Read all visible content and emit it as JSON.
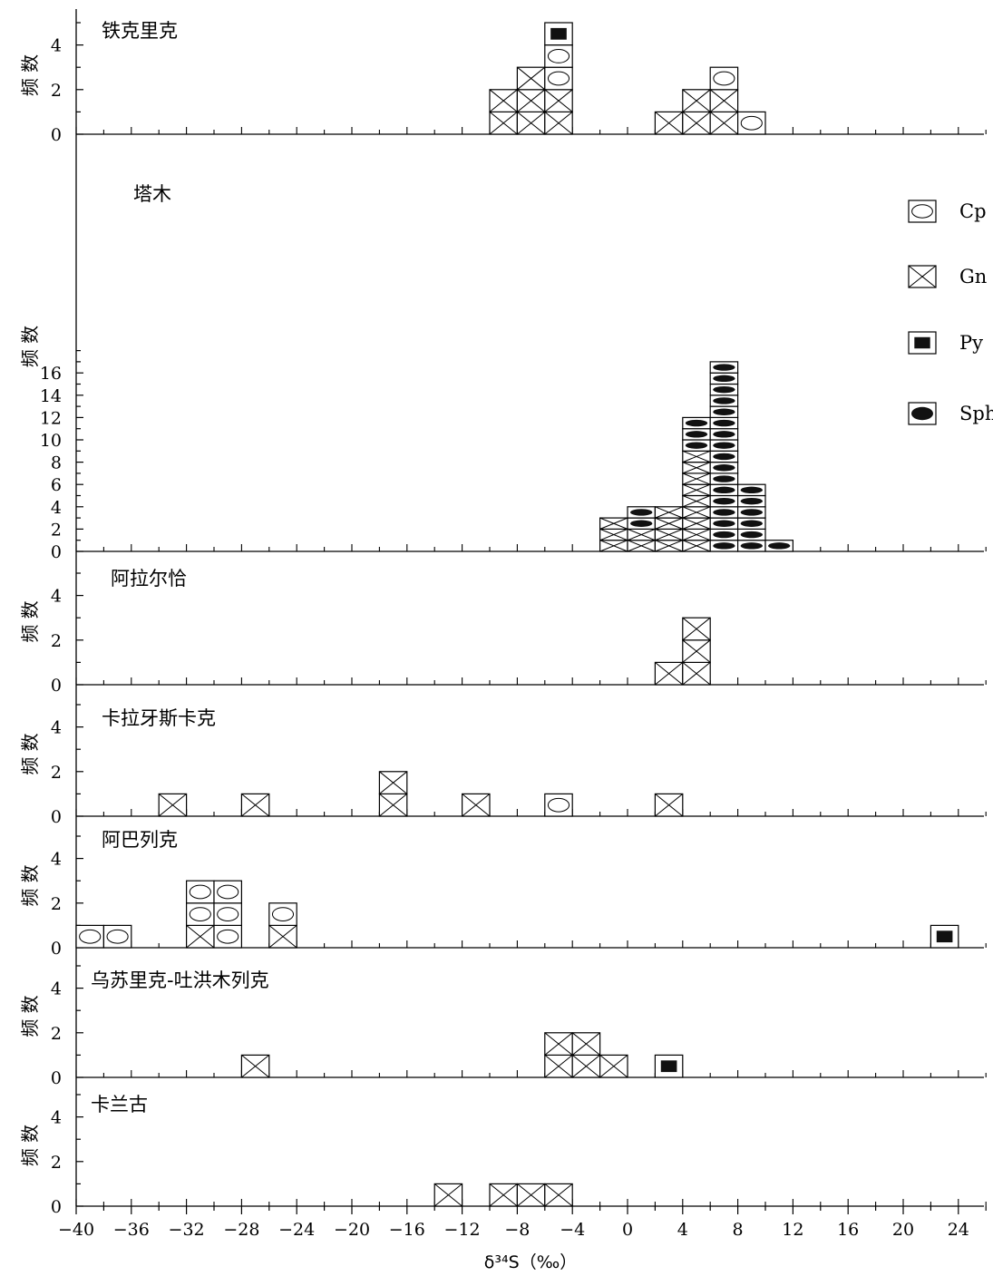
{
  "figure": {
    "xlabel": "δ³⁴S（‰）",
    "ylabel": "频 数",
    "xlim": [
      -40,
      26
    ],
    "x_ticks": [
      -40,
      -36,
      -32,
      -28,
      -24,
      -20,
      -16,
      -12,
      -8,
      -4,
      0,
      4,
      8,
      12,
      16,
      20,
      24
    ],
    "x_tick_labels": [
      "−40",
      "−36",
      "−32",
      "−28",
      "−24",
      "−20",
      "−16",
      "−12",
      "−8",
      "−4",
      "0",
      "4",
      "8",
      "12",
      "16",
      "20",
      "24"
    ],
    "bin_width": 2
  },
  "legend": {
    "placement": "right of 塔木 panel",
    "items": [
      {
        "key": "Cp",
        "label": "Cp",
        "symbol": "open-ellipse"
      },
      {
        "key": "Gn",
        "label": "Gn",
        "symbol": "cross-box"
      },
      {
        "key": "Py",
        "label": "Py",
        "symbol": "filled-square"
      },
      {
        "key": "Sph",
        "label": "Sph",
        "symbol": "filled-ellipse"
      }
    ]
  },
  "chart_data": [
    {
      "type": "bar",
      "title": "铁克里克",
      "ylim": [
        0,
        5
      ],
      "y_ticks": [
        0,
        2,
        4
      ],
      "stack_order": [
        "Gn",
        "Cp",
        "Py"
      ],
      "bins": [
        {
          "x0": -10,
          "x1": -8,
          "counts": {
            "Gn": 2
          }
        },
        {
          "x0": -8,
          "x1": -6,
          "counts": {
            "Gn": 3
          }
        },
        {
          "x0": -6,
          "x1": -4,
          "counts": {
            "Gn": 2,
            "Cp": 2,
            "Py": 1
          }
        },
        {
          "x0": 2,
          "x1": 4,
          "counts": {
            "Gn": 1
          }
        },
        {
          "x0": 4,
          "x1": 6,
          "counts": {
            "Gn": 2
          }
        },
        {
          "x0": 6,
          "x1": 8,
          "counts": {
            "Gn": 2,
            "Cp": 1
          }
        },
        {
          "x0": 8,
          "x1": 10,
          "counts": {
            "Cp": 1
          }
        }
      ]
    },
    {
      "type": "bar",
      "title": "塔木",
      "ylim": [
        0,
        18
      ],
      "y_ticks": [
        0,
        2,
        4,
        6,
        8,
        10,
        12,
        14,
        16
      ],
      "stack_order": [
        "Gn",
        "Sph"
      ],
      "bins": [
        {
          "x0": -2,
          "x1": 0,
          "counts": {
            "Gn": 3
          }
        },
        {
          "x0": 0,
          "x1": 2,
          "counts": {
            "Gn": 2,
            "Sph": 2
          }
        },
        {
          "x0": 2,
          "x1": 4,
          "counts": {
            "Gn": 4
          }
        },
        {
          "x0": 4,
          "x1": 6,
          "counts": {
            "Gn": 9,
            "Sph": 3
          }
        },
        {
          "x0": 6,
          "x1": 8,
          "counts": {
            "Sph": 17
          }
        },
        {
          "x0": 8,
          "x1": 10,
          "counts": {
            "Sph": 6
          }
        },
        {
          "x0": 10,
          "x1": 12,
          "counts": {
            "Sph": 1
          }
        }
      ]
    },
    {
      "type": "bar",
      "title": "阿拉尔恰",
      "ylim": [
        0,
        6
      ],
      "y_ticks": [
        0,
        2,
        4
      ],
      "stack_order": [
        "Gn"
      ],
      "bins": [
        {
          "x0": 2,
          "x1": 4,
          "counts": {
            "Gn": 1
          }
        },
        {
          "x0": 4,
          "x1": 6,
          "counts": {
            "Gn": 3
          }
        }
      ]
    },
    {
      "type": "bar",
      "title": "卡拉牙斯卡克",
      "ylim": [
        0,
        6
      ],
      "y_ticks": [
        0,
        2,
        4
      ],
      "stack_order": [
        "Gn",
        "Cp"
      ],
      "bins": [
        {
          "x0": -34,
          "x1": -32,
          "counts": {
            "Gn": 1
          }
        },
        {
          "x0": -28,
          "x1": -26,
          "counts": {
            "Gn": 1
          }
        },
        {
          "x0": -18,
          "x1": -16,
          "counts": {
            "Gn": 2
          }
        },
        {
          "x0": -12,
          "x1": -10,
          "counts": {
            "Gn": 1
          }
        },
        {
          "x0": -6,
          "x1": -4,
          "counts": {
            "Cp": 1
          }
        },
        {
          "x0": 2,
          "x1": 4,
          "counts": {
            "Gn": 1
          }
        }
      ]
    },
    {
      "type": "bar",
      "title": "阿巴列克",
      "ylim": [
        0,
        6
      ],
      "y_ticks": [
        0,
        2,
        4
      ],
      "stack_order": [
        "Gn",
        "Cp",
        "Py"
      ],
      "bins": [
        {
          "x0": -40,
          "x1": -38,
          "counts": {
            "Cp": 1
          }
        },
        {
          "x0": -38,
          "x1": -36,
          "counts": {
            "Cp": 1
          }
        },
        {
          "x0": -32,
          "x1": -30,
          "counts": {
            "Gn": 1,
            "Cp": 2
          }
        },
        {
          "x0": -30,
          "x1": -28,
          "counts": {
            "Cp": 3
          }
        },
        {
          "x0": -26,
          "x1": -24,
          "counts": {
            "Gn": 1,
            "Cp": 1
          }
        },
        {
          "x0": 22,
          "x1": 24,
          "counts": {
            "Py": 1
          }
        }
      ]
    },
    {
      "type": "bar",
      "title": "乌苏里克-吐洪木列克",
      "ylim": [
        0,
        6
      ],
      "y_ticks": [
        0,
        2,
        4
      ],
      "stack_order": [
        "Gn",
        "Py"
      ],
      "bins": [
        {
          "x0": -28,
          "x1": -26,
          "counts": {
            "Gn": 1
          }
        },
        {
          "x0": -6,
          "x1": -4,
          "counts": {
            "Gn": 2
          }
        },
        {
          "x0": -4,
          "x1": -2,
          "counts": {
            "Gn": 2
          }
        },
        {
          "x0": -2,
          "x1": 0,
          "counts": {
            "Gn": 1
          }
        },
        {
          "x0": 2,
          "x1": 4,
          "counts": {
            "Py": 1
          }
        }
      ]
    },
    {
      "type": "bar",
      "title": "卡兰古",
      "ylim": [
        0,
        6
      ],
      "y_ticks": [
        0,
        2,
        4
      ],
      "stack_order": [
        "Gn"
      ],
      "bins": [
        {
          "x0": -14,
          "x1": -12,
          "counts": {
            "Gn": 1
          }
        },
        {
          "x0": -10,
          "x1": -8,
          "counts": {
            "Gn": 1
          }
        },
        {
          "x0": -8,
          "x1": -6,
          "counts": {
            "Gn": 1
          }
        },
        {
          "x0": -6,
          "x1": -4,
          "counts": {
            "Gn": 1
          }
        }
      ]
    }
  ]
}
